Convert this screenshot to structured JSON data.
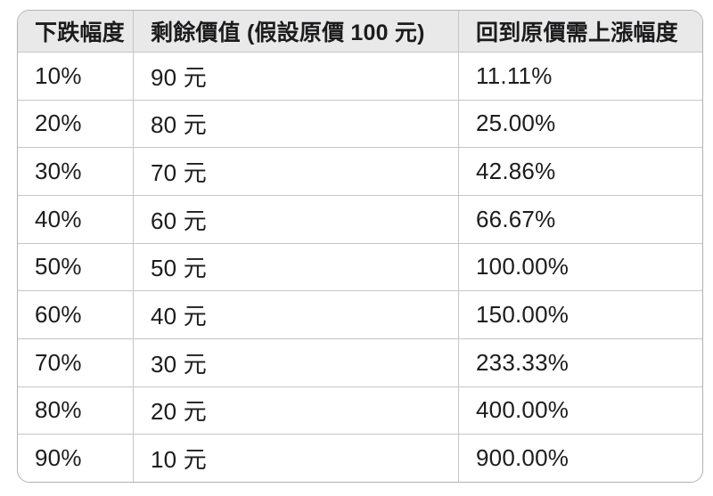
{
  "colors": {
    "background": "#ffffff",
    "header_bg": "#e9e9e9",
    "outer_border": "#b2b2b2",
    "divider": "#c6c6c8",
    "text": "#1c1c1e"
  },
  "table": {
    "columns": [
      "下跌幅度",
      "剩餘價值 (假設原價 100 元)",
      "回到原價需上漲幅度"
    ],
    "rows": [
      {
        "drop": "10%",
        "remaining": "90 元",
        "rise": "11.11%"
      },
      {
        "drop": "20%",
        "remaining": "80 元",
        "rise": "25.00%"
      },
      {
        "drop": "30%",
        "remaining": "70 元",
        "rise": "42.86%"
      },
      {
        "drop": "40%",
        "remaining": "60 元",
        "rise": "66.67%"
      },
      {
        "drop": "50%",
        "remaining": "50 元",
        "rise": "100.00%"
      },
      {
        "drop": "60%",
        "remaining": "40 元",
        "rise": "150.00%"
      },
      {
        "drop": "70%",
        "remaining": "30 元",
        "rise": "233.33%"
      },
      {
        "drop": "80%",
        "remaining": "20 元",
        "rise": "400.00%"
      },
      {
        "drop": "90%",
        "remaining": "10 元",
        "rise": "900.00%"
      }
    ]
  },
  "chart_data": {
    "type": "table",
    "title": "",
    "columns": [
      "下跌幅度",
      "剩餘價值 (假設原價 100 元)",
      "回到原價需上漲幅度"
    ],
    "rows": [
      [
        "10%",
        "90 元",
        "11.11%"
      ],
      [
        "20%",
        "80 元",
        "25.00%"
      ],
      [
        "30%",
        "70 元",
        "42.86%"
      ],
      [
        "40%",
        "60 元",
        "66.67%"
      ],
      [
        "50%",
        "50 元",
        "100.00%"
      ],
      [
        "60%",
        "40 元",
        "150.00%"
      ],
      [
        "70%",
        "30 元",
        "233.33%"
      ],
      [
        "80%",
        "20 元",
        "400.00%"
      ],
      [
        "90%",
        "10 元",
        "900.00%"
      ]
    ],
    "numeric": {
      "drop_pct": [
        10,
        20,
        30,
        40,
        50,
        60,
        70,
        80,
        90
      ],
      "remaining_value_yuan": [
        90,
        80,
        70,
        60,
        50,
        40,
        30,
        20,
        10
      ],
      "required_gain_pct": [
        11.11,
        25.0,
        42.86,
        66.67,
        100.0,
        150.0,
        233.33,
        400.0,
        900.0
      ],
      "assumed_original_price": 100
    }
  }
}
